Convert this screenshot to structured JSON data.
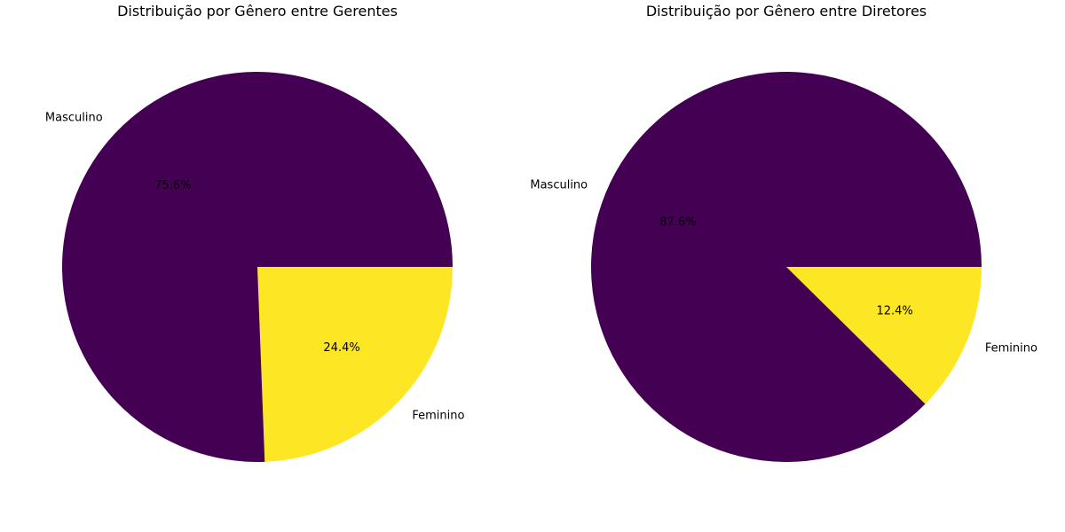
{
  "colors": {
    "masculino": "#440154",
    "feminino": "#fde725",
    "background": "#ffffff",
    "text": "#000000"
  },
  "chart_data": [
    {
      "type": "pie",
      "title": "Distribuição por Gênero entre Gerentes",
      "slices": [
        {
          "label": "Feminino",
          "value": 24.4,
          "pct_label": "24.4%",
          "color_key": "feminino"
        },
        {
          "label": "Masculino",
          "value": 75.6,
          "pct_label": "75.6%",
          "color_key": "masculino"
        }
      ],
      "start_angle_deg": 0,
      "direction": "clockwise"
    },
    {
      "type": "pie",
      "title": "Distribuição por Gênero entre Diretores",
      "slices": [
        {
          "label": "Feminino",
          "value": 12.4,
          "pct_label": "12.4%",
          "color_key": "feminino"
        },
        {
          "label": "Masculino",
          "value": 87.6,
          "pct_label": "87.6%",
          "color_key": "masculino"
        }
      ],
      "start_angle_deg": 0,
      "direction": "clockwise"
    }
  ]
}
